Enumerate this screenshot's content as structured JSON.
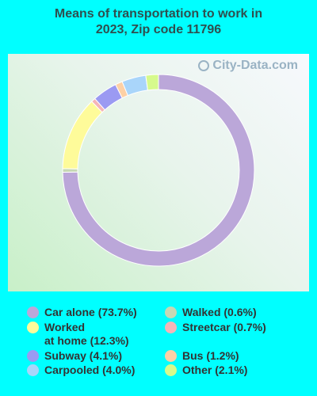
{
  "title_line1": "Means of transportation to work in",
  "title_line2": "2023, Zip code 11796",
  "watermark": "City-Data.com",
  "chart_data": {
    "type": "pie",
    "donut": true,
    "title": "Means of transportation to work in 2023, Zip code 11796",
    "slices": [
      {
        "label": "Car alone",
        "value": 73.7,
        "color": "#bba7d9",
        "legend": "Car alone (73.7%)"
      },
      {
        "label": "Walked",
        "value": 0.6,
        "color": "#c6d8b4",
        "legend": "Walked (0.6%)"
      },
      {
        "label": "Worked at home",
        "value": 12.3,
        "color": "#fefb9a",
        "legend_line1": "Worked",
        "legend_line2": "at home (12.3%)"
      },
      {
        "label": "Streetcar",
        "value": 0.7,
        "color": "#f5b5b8",
        "legend": "Streetcar (0.7%)"
      },
      {
        "label": "Subway",
        "value": 4.1,
        "color": "#9b9af2",
        "legend": "Subway (4.1%)"
      },
      {
        "label": "Bus",
        "value": 1.2,
        "color": "#fdd0a6",
        "legend": "Bus (1.2%)"
      },
      {
        "label": "Carpooled",
        "value": 4.0,
        "color": "#a9d5fa",
        "legend": "Carpooled (4.0%)"
      },
      {
        "label": "Other",
        "value": 2.1,
        "color": "#d6fa8c",
        "legend": "Other (2.1%)"
      }
    ],
    "legend_placement": "bottom"
  }
}
